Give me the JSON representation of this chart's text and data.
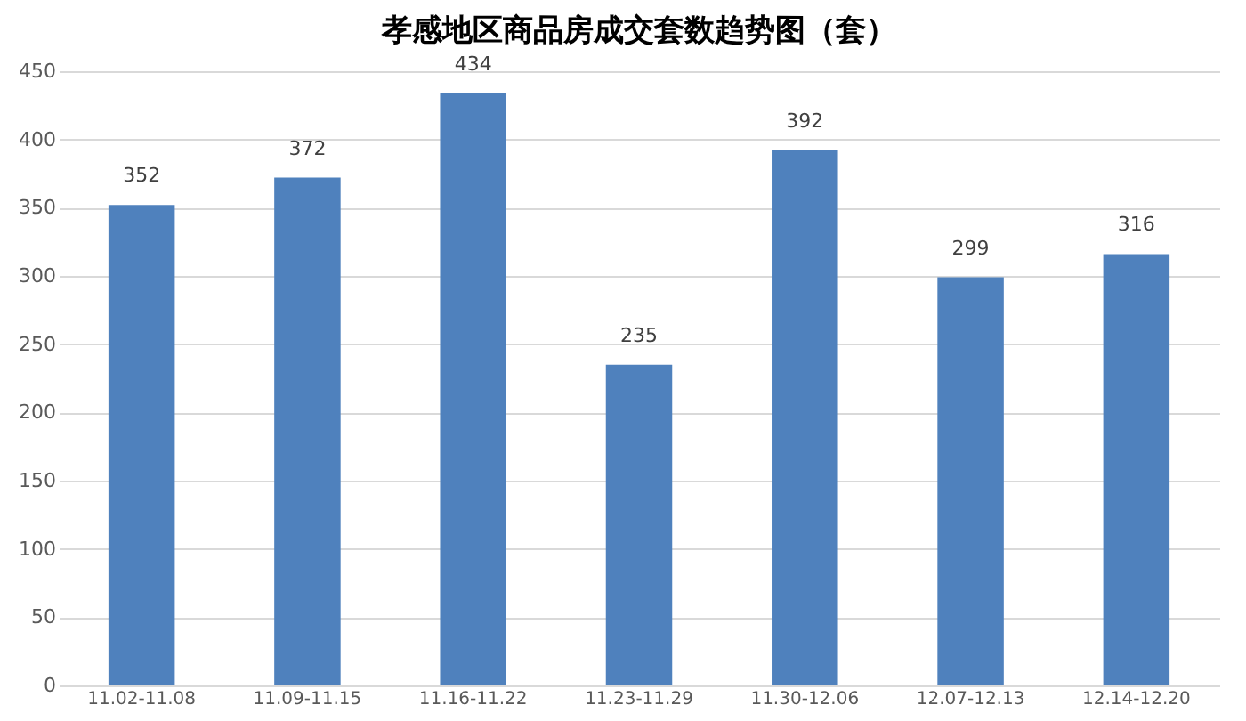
{
  "chart_data": {
    "type": "bar",
    "title": "孝感地区商品房成交套数趋势图（套）",
    "categories": [
      "11.02-11.08",
      "11.09-11.15",
      "11.16-11.22",
      "11.23-11.29",
      "11.30-12.06",
      "12.07-12.13",
      "12.14-12.20"
    ],
    "values": [
      352,
      372,
      434,
      235,
      392,
      299,
      316
    ],
    "color": "#4f81bd",
    "ylim": [
      0,
      450
    ],
    "yticks": [
      0,
      50,
      100,
      150,
      200,
      250,
      300,
      350,
      400,
      450
    ],
    "grid": "y",
    "data_labels": true
  }
}
